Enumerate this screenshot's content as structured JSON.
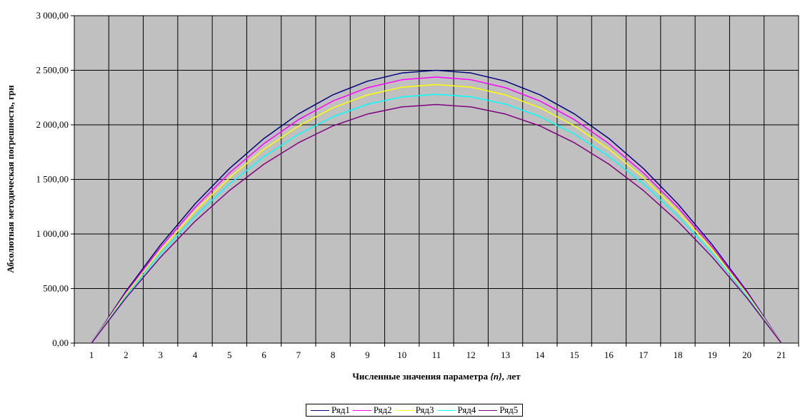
{
  "chart_data": {
    "type": "line",
    "xlabel_main": "Численные значения параметра ",
    "xlabel_italic": "{n}",
    "xlabel_tail": ", лет",
    "ylabel": "Абсолютная методическая погрешность, грн",
    "x": [
      1,
      2,
      3,
      4,
      5,
      6,
      7,
      8,
      9,
      10,
      11,
      12,
      13,
      14,
      15,
      16,
      17,
      18,
      19,
      20,
      21
    ],
    "categories": [
      "1",
      "2",
      "3",
      "4",
      "5",
      "6",
      "7",
      "8",
      "9",
      "10",
      "11",
      "12",
      "13",
      "14",
      "15",
      "16",
      "17",
      "18",
      "19",
      "20",
      "21"
    ],
    "y_ticks": [
      0,
      500,
      1000,
      1500,
      2000,
      2500,
      3000
    ],
    "y_tick_labels": [
      "0,00",
      "500,00",
      "1 000,00",
      "1 500,00",
      "2 000,00",
      "2 500,00",
      "3 000,00"
    ],
    "ylim": [
      0,
      3000
    ],
    "grid": true,
    "plot_background": "#c0c0c0",
    "legend_position": "bottom-center",
    "series": [
      {
        "name": "Ряд1",
        "color": "#000080",
        "values": [
          0,
          475,
          900,
          1275,
          1600,
          1875,
          2100,
          2275,
          2400,
          2475,
          2500,
          2475,
          2400,
          2275,
          2100,
          1875,
          1600,
          1275,
          900,
          475,
          0
        ]
      },
      {
        "name": "Ряд2",
        "color": "#ff00ff",
        "values": [
          0,
          463,
          878,
          1243,
          1560,
          1828,
          2048,
          2218,
          2340,
          2413,
          2438,
          2413,
          2340,
          2218,
          2048,
          1828,
          1560,
          1243,
          878,
          463,
          0
        ]
      },
      {
        "name": "Ряд3",
        "color": "#ffff00",
        "values": [
          0,
          450,
          853,
          1208,
          1516,
          1777,
          1990,
          2156,
          2274,
          2345,
          2369,
          2345,
          2274,
          2156,
          1990,
          1777,
          1516,
          1208,
          853,
          450,
          0
        ]
      },
      {
        "name": "Ряд4",
        "color": "#00ffff",
        "values": [
          0,
          433,
          821,
          1163,
          1459,
          1710,
          1915,
          2075,
          2189,
          2257,
          2280,
          2257,
          2189,
          2075,
          1915,
          1710,
          1459,
          1163,
          821,
          433,
          0
        ]
      },
      {
        "name": "Ряд5",
        "color": "#800080",
        "values": [
          0,
          415,
          787,
          1115,
          1399,
          1640,
          1836,
          1990,
          2099,
          2164,
          2186,
          2164,
          2099,
          1990,
          1836,
          1640,
          1399,
          1115,
          787,
          415,
          0
        ]
      }
    ]
  }
}
